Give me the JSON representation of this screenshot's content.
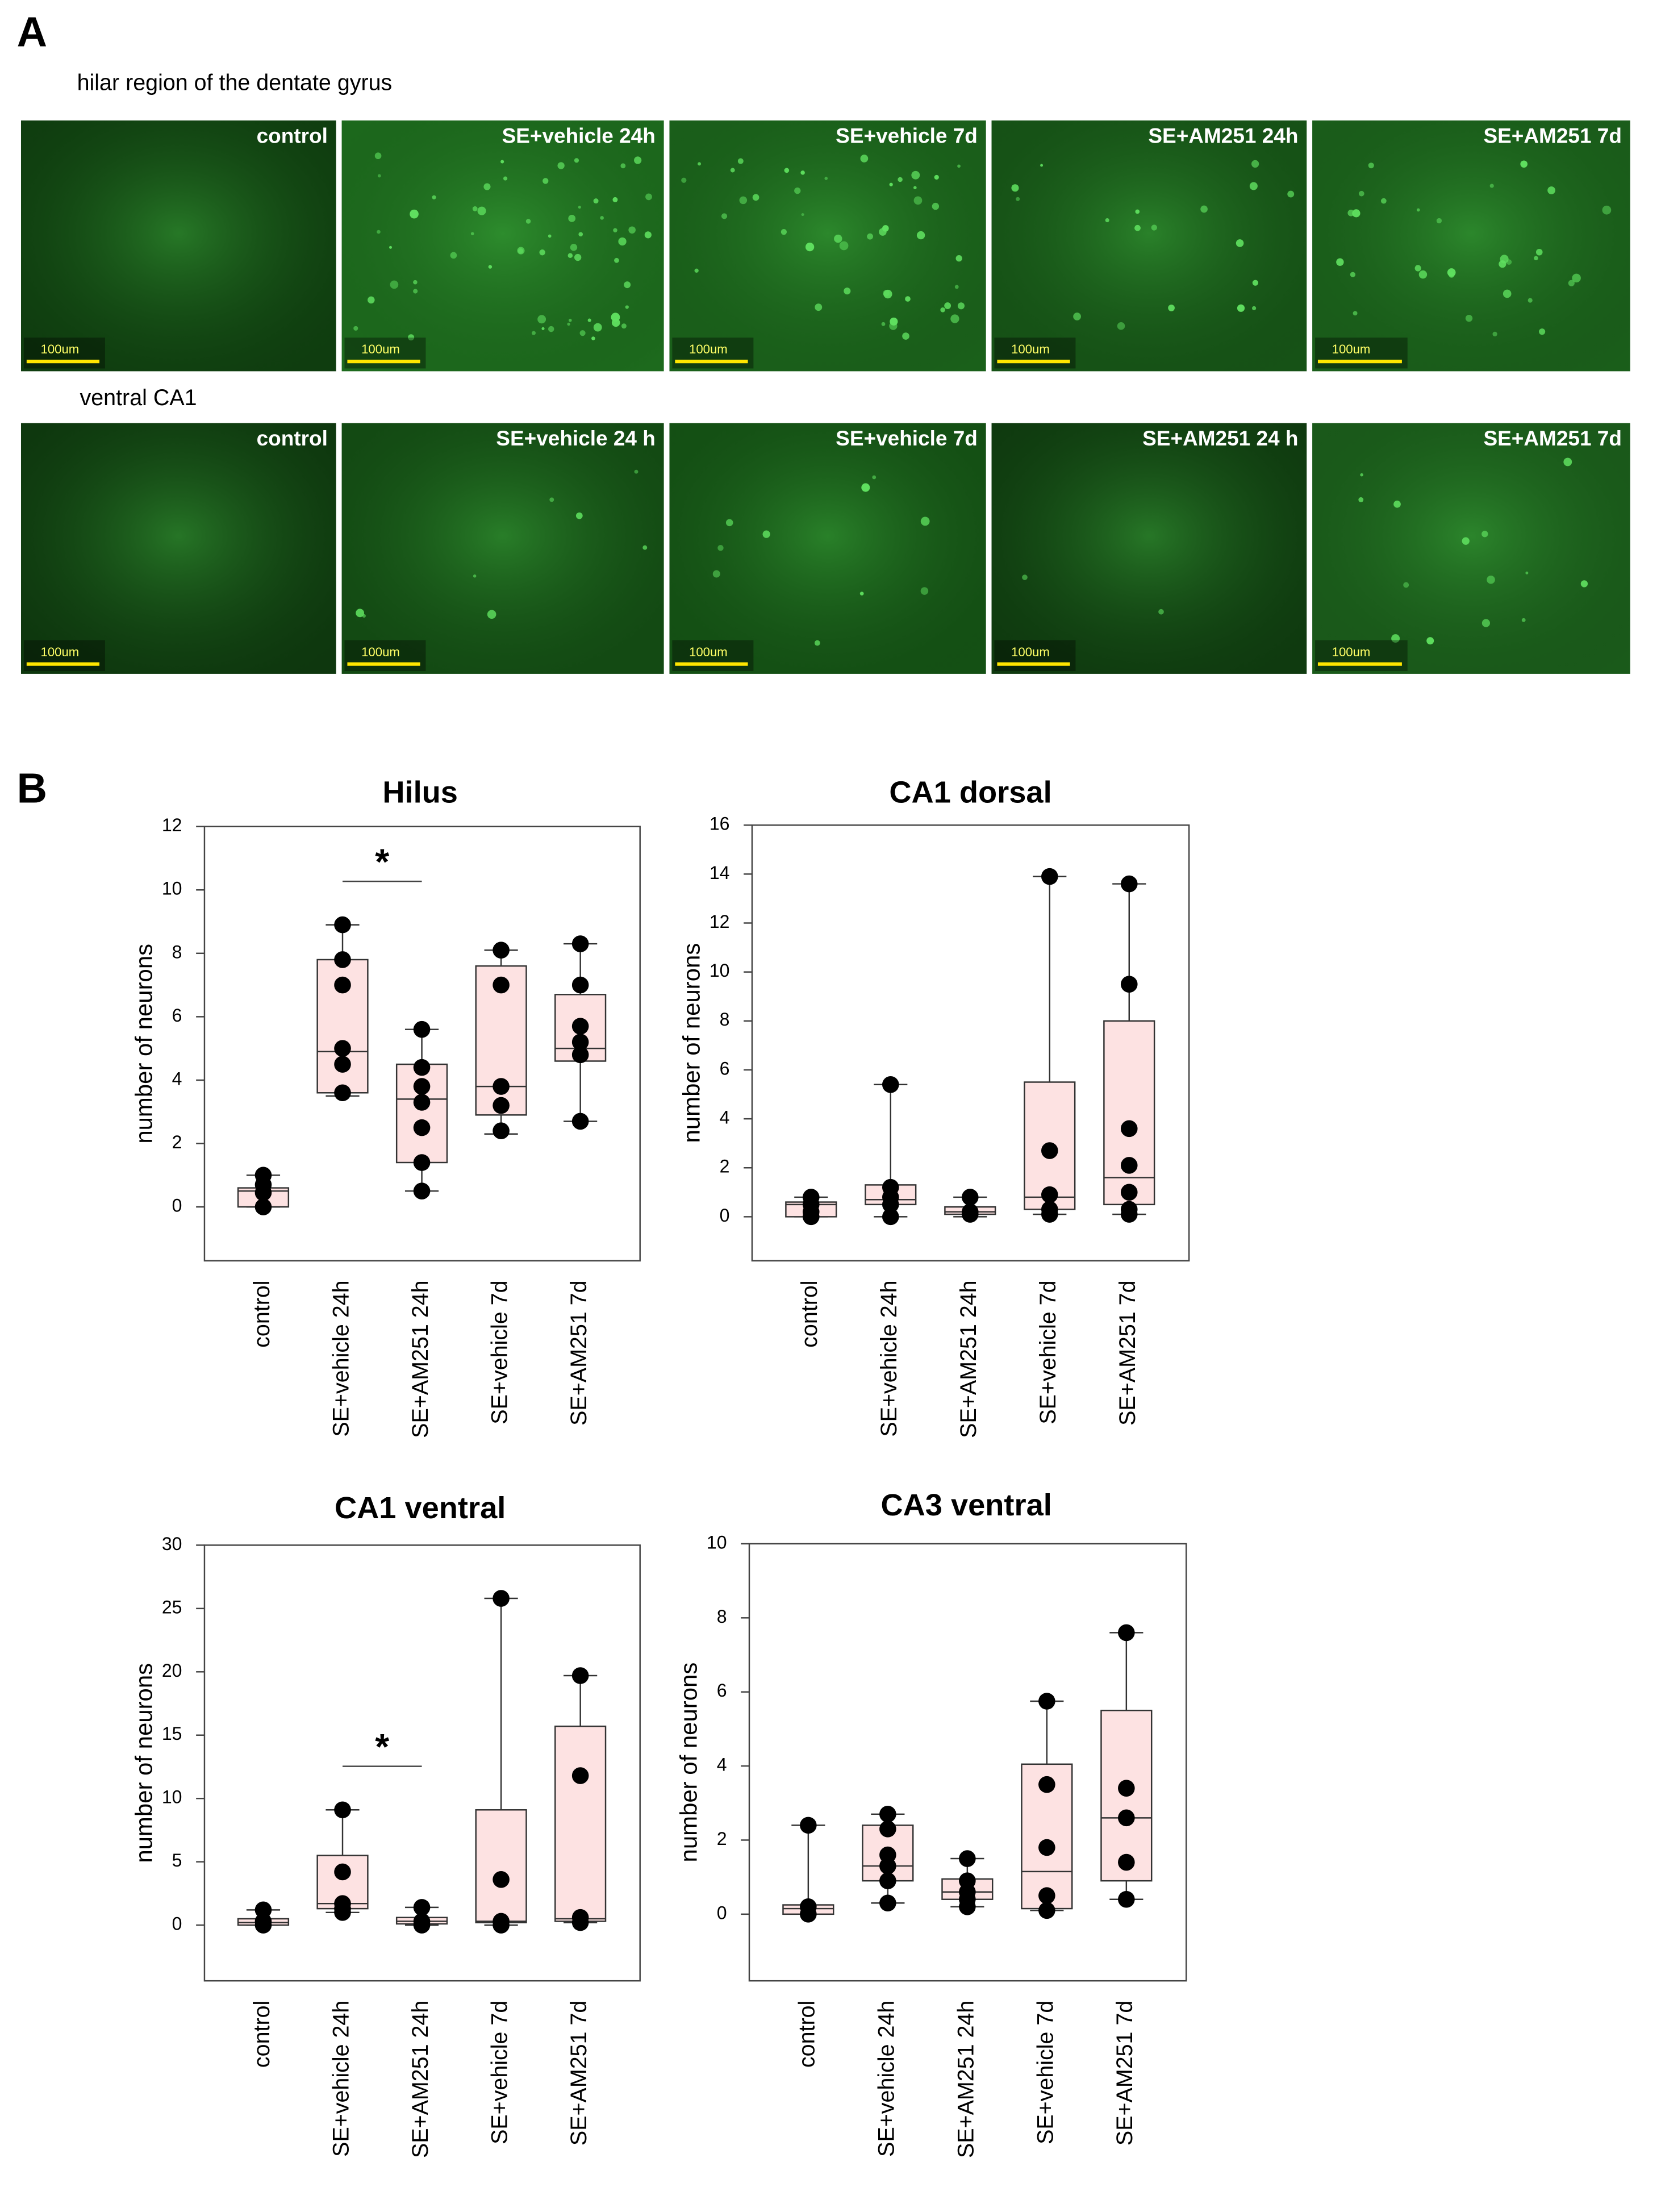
{
  "panel_a": {
    "label": "A",
    "rows": [
      {
        "title": "hilar region of the dentate gyrus",
        "images": [
          {
            "label": "control",
            "scale": "100um"
          },
          {
            "label": "SE+vehicle 24h",
            "scale": "100um"
          },
          {
            "label": "SE+vehicle 7d",
            "scale": "100um"
          },
          {
            "label": "SE+AM251 24h",
            "scale": "100um"
          },
          {
            "label": "SE+AM251 7d",
            "scale": "100um"
          }
        ]
      },
      {
        "title": "ventral CA1",
        "images": [
          {
            "label": "control",
            "scale": "100um"
          },
          {
            "label": "SE+vehicle 24 h",
            "scale": "100um"
          },
          {
            "label": "SE+vehicle 7d",
            "scale": "100um"
          },
          {
            "label": "SE+AM251 24 h",
            "scale": "100um"
          },
          {
            "label": "SE+AM251 7d",
            "scale": "100um"
          }
        ]
      }
    ]
  },
  "panel_b": {
    "label": "B"
  },
  "chart_data": [
    {
      "type": "box",
      "title": "Hilus",
      "ylabel": "number of neurons",
      "categories": [
        "control",
        "SE+vehicle 24h",
        "SE+AM251 24h",
        "SE+vehicle 7d",
        "SE+AM251 7d"
      ],
      "box_color": "#fde2e2",
      "line_color": "#333333",
      "point_color": "#000000",
      "ylim": [
        -1.7,
        12
      ],
      "yticks": [
        0,
        2,
        4,
        6,
        8,
        10,
        12
      ],
      "boxes": [
        {
          "low": 0,
          "q1": 0,
          "median": 0.5,
          "q3": 0.6,
          "high": 1.0,
          "points": [
            1.0,
            0.7,
            0.45,
            0
          ]
        },
        {
          "low": 3.5,
          "q1": 3.6,
          "median": 4.9,
          "q3": 7.8,
          "high": 8.9,
          "points": [
            8.9,
            7.8,
            7.0,
            5.0,
            4.5,
            3.6
          ]
        },
        {
          "low": 0.5,
          "q1": 1.4,
          "median": 3.4,
          "q3": 4.5,
          "high": 5.6,
          "points": [
            5.6,
            4.4,
            3.8,
            3.3,
            2.5,
            1.4,
            0.5
          ]
        },
        {
          "low": 2.3,
          "q1": 2.9,
          "median": 3.8,
          "q3": 7.6,
          "high": 8.1,
          "points": [
            8.1,
            7.0,
            3.8,
            3.2,
            2.4
          ]
        },
        {
          "low": 2.7,
          "q1": 4.6,
          "median": 5.0,
          "q3": 6.7,
          "high": 8.3,
          "points": [
            8.3,
            7.0,
            5.7,
            5.2,
            4.8,
            2.7
          ]
        }
      ],
      "significance": {
        "label": "*",
        "from": "SE+vehicle 24h",
        "to": "SE+AM251 24h"
      }
    },
    {
      "type": "box",
      "title": "CA1 dorsal",
      "ylabel": "number of neurons",
      "categories": [
        "control",
        "SE+vehicle 24h",
        "SE+AM251 24h",
        "SE+vehicle 7d",
        "SE+AM251 7d"
      ],
      "box_color": "#fde2e2",
      "line_color": "#333333",
      "point_color": "#000000",
      "ylim": [
        -1.8,
        16
      ],
      "yticks": [
        0,
        2,
        4,
        6,
        8,
        10,
        12,
        14,
        16
      ],
      "boxes": [
        {
          "low": 0,
          "q1": 0,
          "median": 0.5,
          "q3": 0.6,
          "high": 0.8,
          "points": [
            0.8,
            0.5,
            0.2,
            0
          ]
        },
        {
          "low": 0,
          "q1": 0.5,
          "median": 0.7,
          "q3": 1.3,
          "high": 5.4,
          "points": [
            5.4,
            1.2,
            0.8,
            0.5,
            0
          ]
        },
        {
          "low": 0,
          "q1": 0.1,
          "median": 0.2,
          "q3": 0.4,
          "high": 0.8,
          "points": [
            0.8,
            0.2,
            0.1
          ]
        },
        {
          "low": 0.1,
          "q1": 0.3,
          "median": 0.8,
          "q3": 5.5,
          "high": 13.9,
          "points": [
            13.9,
            2.7,
            0.9,
            0.3,
            0.1
          ]
        },
        {
          "low": 0.1,
          "q1": 0.5,
          "median": 1.6,
          "q3": 8.0,
          "high": 13.6,
          "points": [
            13.6,
            9.5,
            3.6,
            2.1,
            1.0,
            0.3,
            0.1
          ]
        }
      ]
    },
    {
      "type": "box",
      "title": "CA1 ventral",
      "ylabel": "number of neurons",
      "categories": [
        "control",
        "SE+vehicle 24h",
        "SE+AM251 24h",
        "SE+vehicle 7d",
        "SE+AM251 7d"
      ],
      "box_color": "#fde2e2",
      "line_color": "#333333",
      "point_color": "#000000",
      "ylim": [
        -4.4,
        30
      ],
      "yticks": [
        0,
        5,
        10,
        15,
        20,
        25,
        30
      ],
      "boxes": [
        {
          "low": 0,
          "q1": 0,
          "median": 0.2,
          "q3": 0.5,
          "high": 1.2,
          "points": [
            1.2,
            0.3,
            0
          ]
        },
        {
          "low": 1.0,
          "q1": 1.3,
          "median": 1.7,
          "q3": 5.5,
          "high": 9.1,
          "points": [
            9.1,
            4.2,
            1.7,
            1.3,
            1.0
          ]
        },
        {
          "low": 0,
          "q1": 0.1,
          "median": 0.3,
          "q3": 0.6,
          "high": 1.4,
          "points": [
            1.4,
            0.3,
            0
          ]
        },
        {
          "low": 0,
          "q1": 0.2,
          "median": 0.3,
          "q3": 9.1,
          "high": 25.8,
          "points": [
            25.8,
            3.6,
            0.3,
            0
          ]
        },
        {
          "low": 0.2,
          "q1": 0.3,
          "median": 0.5,
          "q3": 15.7,
          "high": 19.7,
          "points": [
            19.7,
            11.8,
            0.6,
            0.2
          ]
        }
      ],
      "significance": {
        "label": "*",
        "from": "SE+vehicle 24h",
        "to": "SE+AM251 24h"
      }
    },
    {
      "type": "box",
      "title": "CA3 ventral",
      "ylabel": "number of neurons",
      "categories": [
        "control",
        "SE+vehicle 24h",
        "SE+AM251 24h",
        "SE+vehicle 7d",
        "SE+AM251 7d"
      ],
      "box_color": "#fde2e2",
      "line_color": "#333333",
      "point_color": "#000000",
      "ylim": [
        -1.8,
        10
      ],
      "yticks": [
        0,
        2,
        4,
        6,
        8,
        10
      ],
      "boxes": [
        {
          "low": 0,
          "q1": 0,
          "median": 0.15,
          "q3": 0.25,
          "high": 2.4,
          "points": [
            2.4,
            0.2,
            0
          ]
        },
        {
          "low": 0.3,
          "q1": 0.9,
          "median": 1.3,
          "q3": 2.4,
          "high": 2.7,
          "points": [
            2.7,
            2.3,
            1.6,
            1.3,
            0.9,
            0.3
          ]
        },
        {
          "low": 0.2,
          "q1": 0.4,
          "median": 0.6,
          "q3": 0.95,
          "high": 1.5,
          "points": [
            1.5,
            0.9,
            0.6,
            0.4,
            0.2
          ]
        },
        {
          "low": 0.1,
          "q1": 0.15,
          "median": 1.15,
          "q3": 4.05,
          "high": 5.75,
          "points": [
            5.75,
            3.5,
            1.8,
            0.5,
            0.1
          ]
        },
        {
          "low": 0.4,
          "q1": 0.9,
          "median": 2.6,
          "q3": 5.5,
          "high": 7.6,
          "points": [
            7.6,
            3.4,
            2.6,
            1.4,
            0.4
          ]
        }
      ]
    }
  ]
}
